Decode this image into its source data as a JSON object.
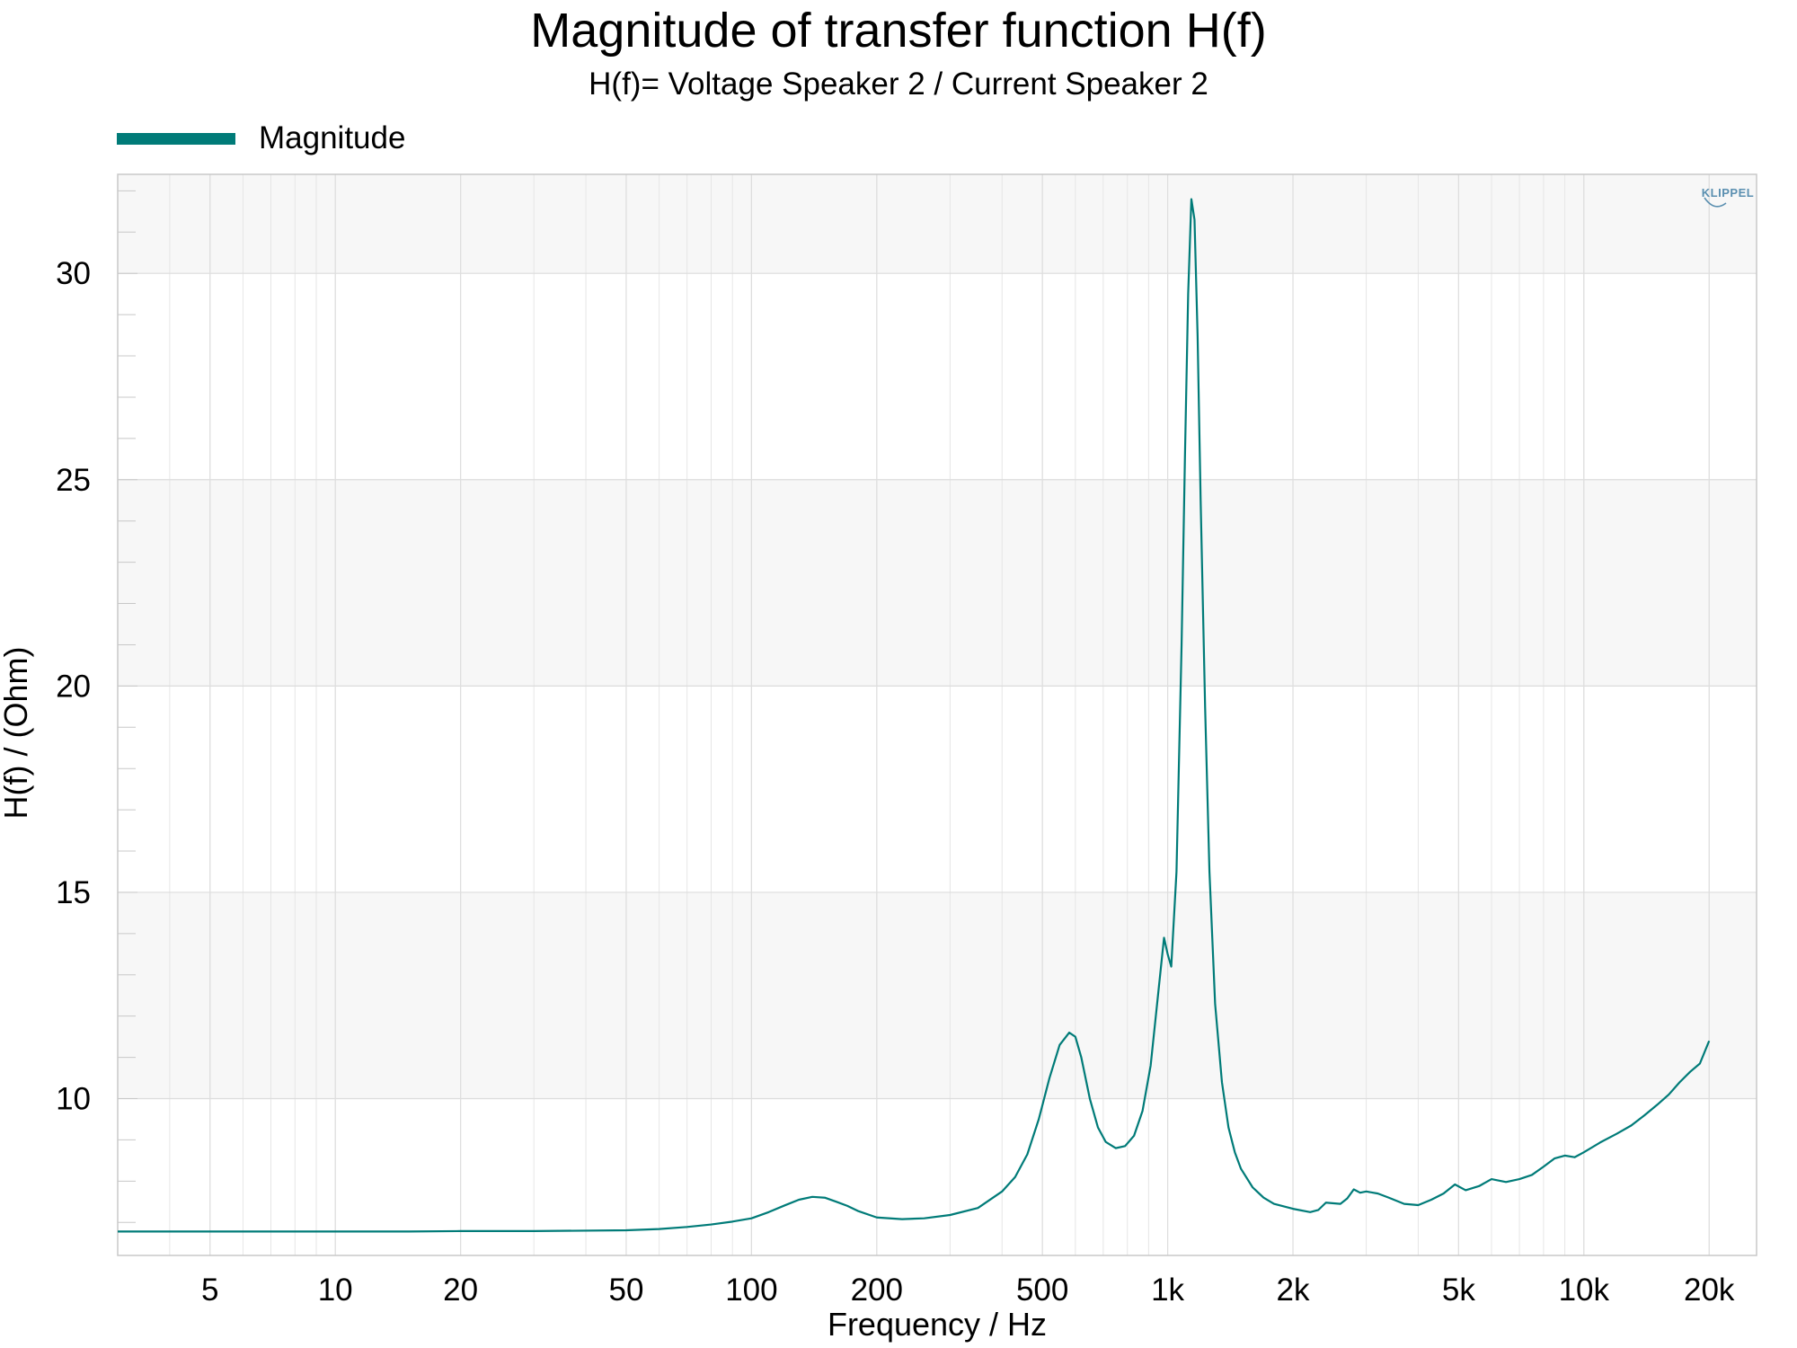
{
  "chart_data": {
    "type": "line",
    "title": "Magnitude of transfer function H(f)",
    "subtitle": "H(f)= Voltage Speaker 2 / Current Speaker 2",
    "xlabel": "Frequency / Hz",
    "ylabel": "H(f) / (Ohm)",
    "x_scale": "log",
    "xlim": [
      3,
      26000
    ],
    "ylim": [
      6.2,
      32.4
    ],
    "x_ticks": [
      5,
      10,
      20,
      50,
      100,
      200,
      500,
      1000,
      2000,
      5000,
      10000,
      20000
    ],
    "x_tick_labels": [
      "5",
      "10",
      "20",
      "50",
      "100",
      "200",
      "500",
      "1k",
      "2k",
      "5k",
      "10k",
      "20k"
    ],
    "y_ticks": [
      10,
      15,
      20,
      25,
      30
    ],
    "y_tick_labels": [
      "10",
      "15",
      "20",
      "25",
      "30"
    ],
    "grid": true,
    "legend_position": "top-left",
    "logo": "KLIPPEL",
    "series": [
      {
        "name": "Magnitude",
        "color": "#007b78",
        "x": [
          3,
          5,
          10,
          15,
          20,
          30,
          50,
          60,
          70,
          80,
          90,
          100,
          110,
          120,
          130,
          140,
          150,
          160,
          170,
          180,
          200,
          230,
          260,
          300,
          350,
          400,
          430,
          460,
          490,
          520,
          550,
          580,
          600,
          620,
          650,
          680,
          710,
          750,
          790,
          830,
          870,
          910,
          950,
          980,
          1000,
          1020,
          1050,
          1080,
          1100,
          1120,
          1140,
          1160,
          1180,
          1200,
          1230,
          1260,
          1300,
          1350,
          1400,
          1450,
          1500,
          1600,
          1700,
          1800,
          2000,
          2200,
          2300,
          2400,
          2600,
          2700,
          2800,
          2900,
          3000,
          3200,
          3400,
          3700,
          4000,
          4300,
          4600,
          4900,
          5200,
          5600,
          6000,
          6500,
          7000,
          7500,
          8000,
          8500,
          9000,
          9500,
          10000,
          11000,
          12000,
          13000,
          14000,
          15000,
          16000,
          17000,
          18000,
          19000,
          20000
        ],
        "y": [
          6.78,
          6.78,
          6.78,
          6.78,
          6.79,
          6.79,
          6.81,
          6.84,
          6.89,
          6.95,
          7.02,
          7.1,
          7.25,
          7.41,
          7.55,
          7.62,
          7.6,
          7.5,
          7.4,
          7.28,
          7.12,
          7.08,
          7.1,
          7.18,
          7.35,
          7.75,
          8.1,
          8.65,
          9.5,
          10.5,
          11.3,
          11.6,
          11.5,
          11.0,
          10.0,
          9.3,
          8.95,
          8.8,
          8.85,
          9.1,
          9.7,
          10.8,
          12.6,
          13.9,
          13.5,
          13.2,
          15.5,
          21.0,
          25.5,
          29.5,
          31.8,
          31.3,
          28.5,
          24.5,
          19.5,
          15.5,
          12.3,
          10.4,
          9.3,
          8.7,
          8.3,
          7.85,
          7.6,
          7.45,
          7.33,
          7.25,
          7.3,
          7.48,
          7.45,
          7.58,
          7.8,
          7.72,
          7.75,
          7.7,
          7.6,
          7.45,
          7.42,
          7.55,
          7.7,
          7.92,
          7.78,
          7.88,
          8.05,
          7.98,
          8.05,
          8.15,
          8.35,
          8.55,
          8.62,
          8.58,
          8.7,
          8.95,
          9.15,
          9.35,
          9.6,
          9.85,
          10.1,
          10.4,
          10.65,
          10.85,
          11.4
        ]
      }
    ]
  }
}
